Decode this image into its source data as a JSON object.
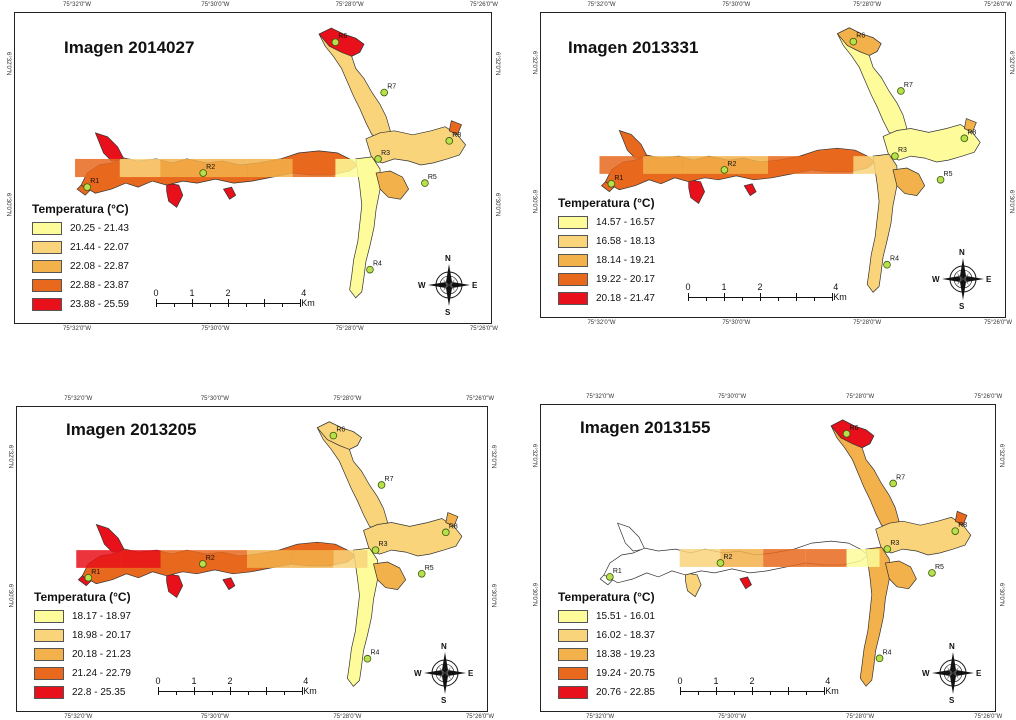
{
  "map_ui": {
    "legend_title": "Temperatura (°C)",
    "scale_labels": [
      "0",
      "1",
      "2",
      "4 Km"
    ],
    "compass": {
      "n": "N",
      "s": "S",
      "e": "E",
      "w": "W"
    },
    "station_labels": [
      "R1",
      "R2",
      "R3",
      "R4",
      "R5",
      "R6",
      "R7",
      "R8"
    ]
  },
  "coords": {
    "top_a": "75°32'0\"W",
    "top_b": "75°30'0\"W",
    "top_c": "75°28'0\"W",
    "top_d": "75°26'0\"W",
    "side_a": "6°32'0\"N",
    "side_b": "6°30'0\"N"
  },
  "panels": [
    {
      "title": "Imagen 2014027",
      "ranges": [
        "20.25 - 21.43",
        "21.44 - 22.07",
        "22.08 - 22.87",
        "22.88 - 23.87",
        "23.88 - 25.59"
      ],
      "colors": [
        "#fdfb9a",
        "#f9d47a",
        "#f2b14a",
        "#e8681e",
        "#e8101a"
      ]
    },
    {
      "title": "Imagen 2013331",
      "ranges": [
        "14.57 - 16.57",
        "16.58 - 18.13",
        "18.14 - 19.21",
        "19.22 - 20.17",
        "20.18 - 21.47"
      ],
      "colors": [
        "#fdfb9a",
        "#f9d47a",
        "#f2b14a",
        "#e8681e",
        "#e8101a"
      ]
    },
    {
      "title": "Imagen 2013205",
      "ranges": [
        "18.17 - 18.97",
        "18.98 - 20.17",
        "20.18 - 21.23",
        "21.24 - 22.79",
        "22.8 - 25.35"
      ],
      "colors": [
        "#fdfb9a",
        "#f9d47a",
        "#f2b14a",
        "#e8681e",
        "#e8101a"
      ]
    },
    {
      "title": "Imagen 2013155",
      "ranges": [
        "15.51 - 16.01",
        "16.02 - 18.37",
        "18.38 - 19.23",
        "19.24 - 20.75",
        "20.76 - 22.85"
      ],
      "colors": [
        "#fdfb9a",
        "#f9d47a",
        "#f2b14a",
        "#e8681e",
        "#e8101a"
      ]
    }
  ]
}
